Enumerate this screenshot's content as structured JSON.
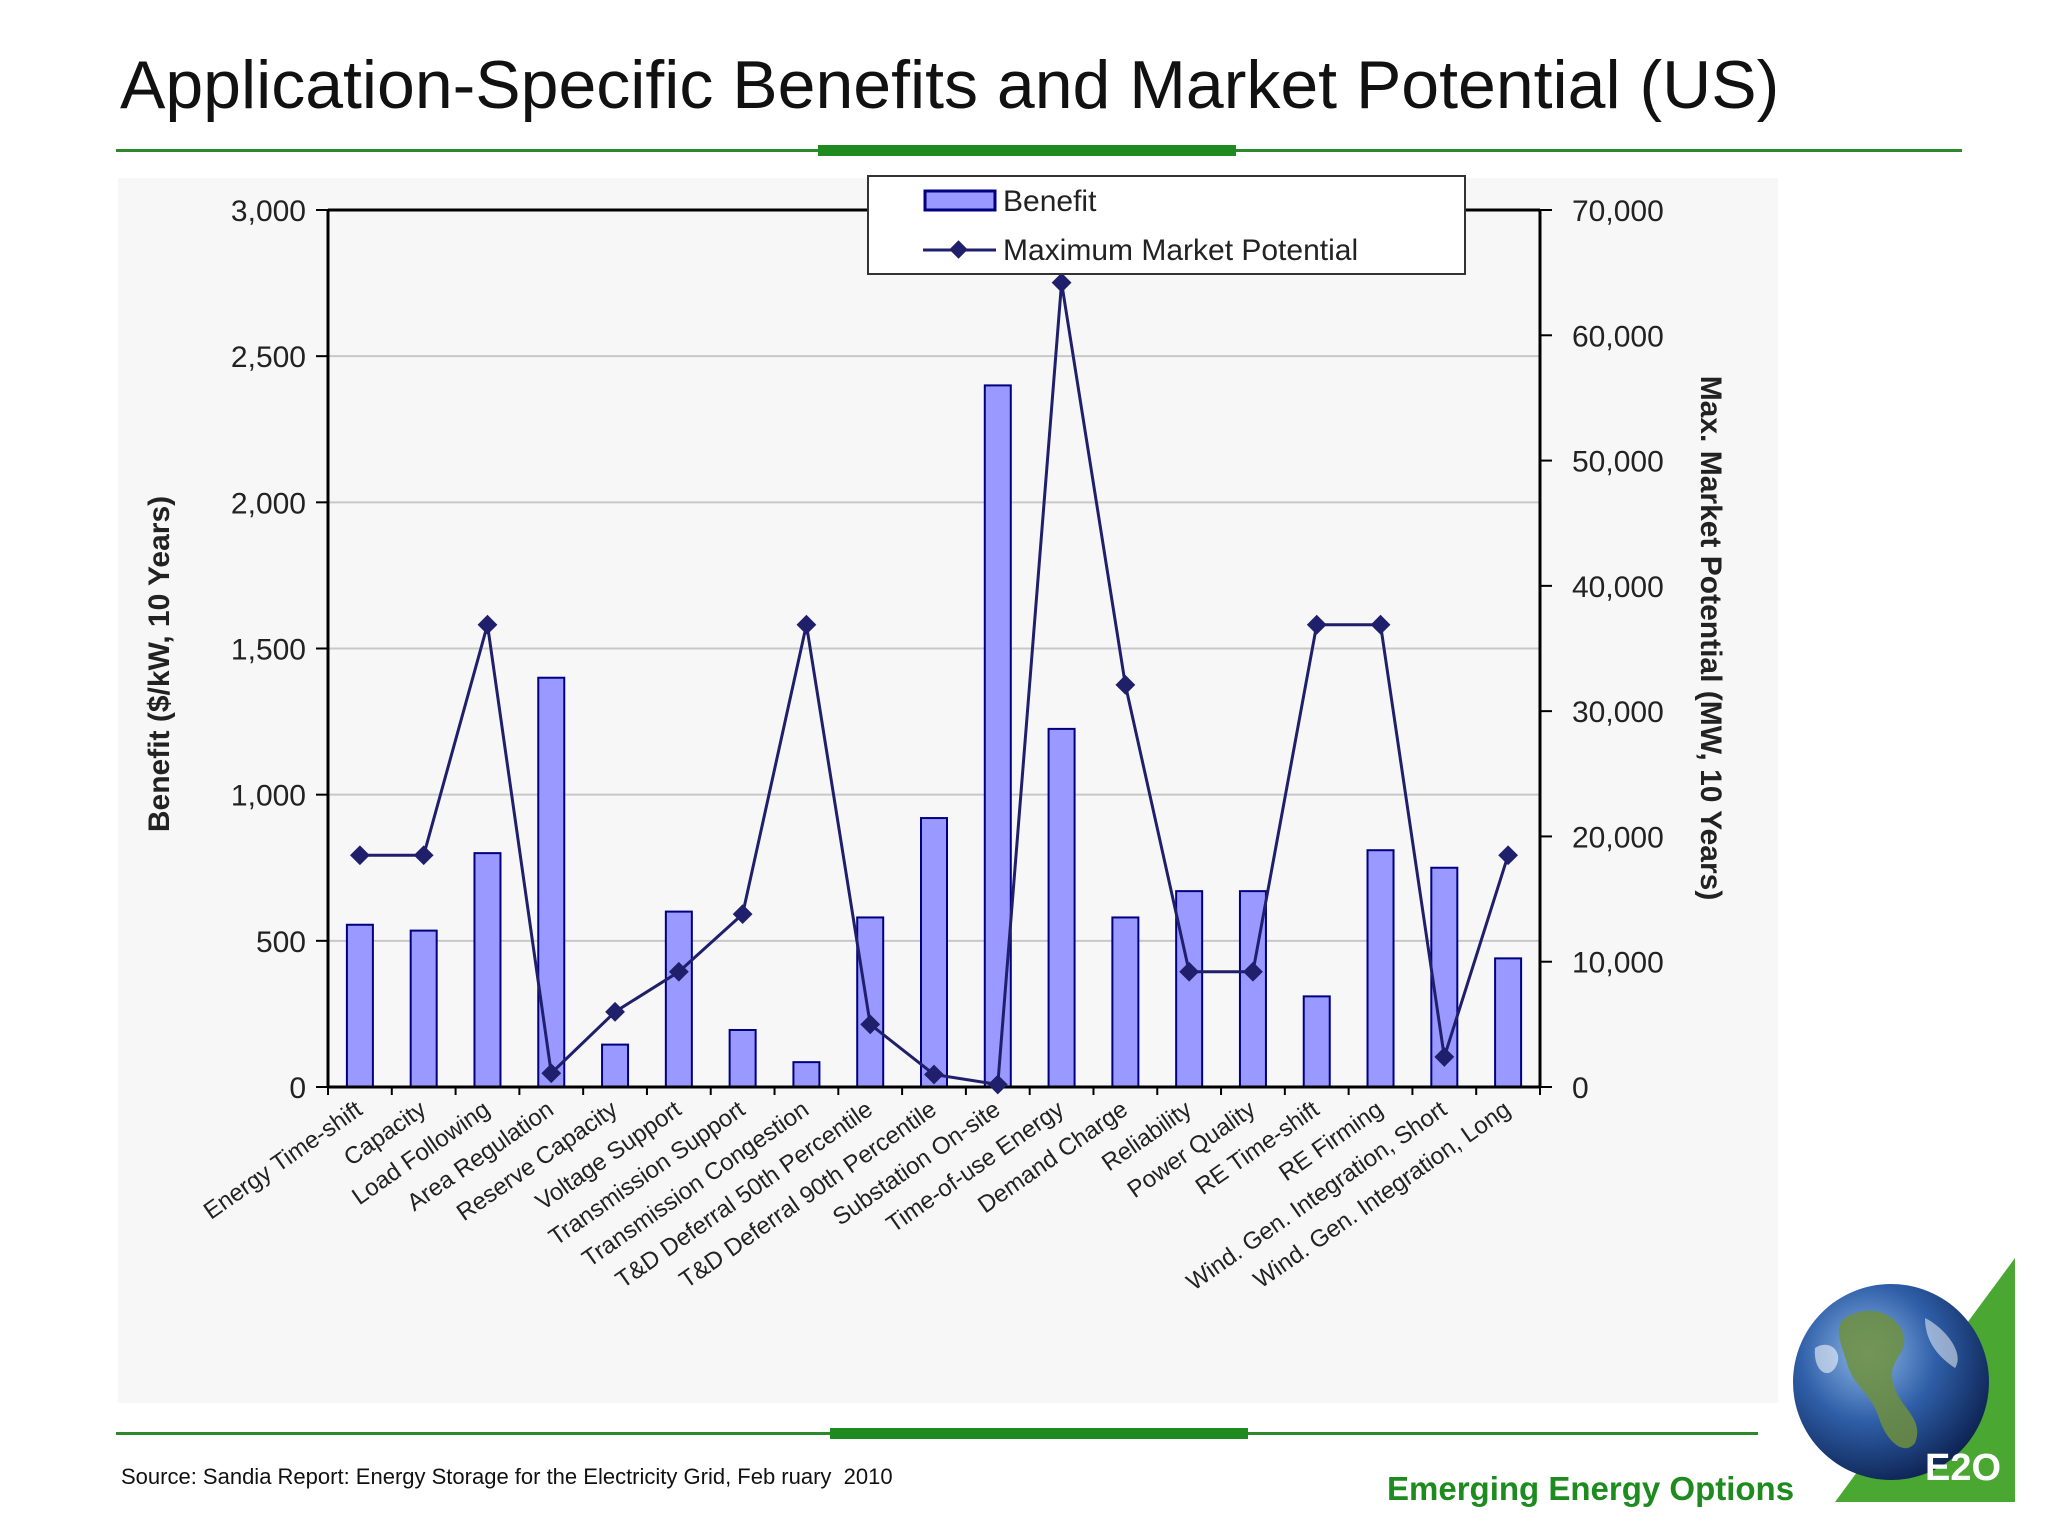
{
  "slide": {
    "title": "Application-Specific Benefits and Market Potential (US)",
    "source": "Source: Sandia Report: Energy Storage for the Electricity Grid, Feb ruary  2010",
    "brand": "Emerging Energy Options",
    "logo_text": "E2O"
  },
  "colors": {
    "bar_fill": "#9999ff",
    "bar_stroke": "#000080",
    "line": "#1f1f6b",
    "accent_green": "#1e8b1e"
  },
  "chart_data": {
    "type": "bar",
    "combo": "bar + line (dual axis)",
    "categories": [
      "Energy Time-shift",
      "Capacity",
      "Load Following",
      "Area Regulation",
      "Reserve Capacity",
      "Voltage Support",
      "Transmission Support",
      "Transmission Congestion",
      "T&D Deferral 50th Percentile",
      "T&D Deferral 90th Percentile",
      "Substation On-site",
      "Time-of-use Energy",
      "Demand Charge",
      "Reliability",
      "Power Quality",
      "RE Time-shift",
      "RE Firming",
      "Wind. Gen. Integration, Short",
      "Wind. Gen. Integration, Long"
    ],
    "series": [
      {
        "name": "Benefit",
        "type": "bar",
        "axis": "left",
        "values": [
          555,
          535,
          800,
          1400,
          145,
          600,
          195,
          85,
          580,
          920,
          2400,
          1225,
          580,
          670,
          670,
          310,
          810,
          750,
          440
        ]
      },
      {
        "name": "Maximum Market Potential",
        "type": "line",
        "axis": "right",
        "values": [
          18500,
          18500,
          36900,
          1100,
          6000,
          9200,
          13800,
          36900,
          5000,
          1000,
          200,
          64200,
          32100,
          9200,
          9200,
          36900,
          36900,
          2400,
          18500
        ]
      }
    ],
    "y_left": {
      "label": "Benefit ($/kW, 10 Years)",
      "range": [
        0,
        3000
      ],
      "ticks": [
        0,
        500,
        1000,
        1500,
        2000,
        2500,
        3000
      ],
      "tick_labels": [
        "0",
        "500",
        "1,000",
        "1,500",
        "2,000",
        "2,500",
        "3,000"
      ]
    },
    "y_right": {
      "label": "Max. Market Potential (MW, 10 Years)",
      "range": [
        0,
        70000
      ],
      "ticks": [
        0,
        10000,
        20000,
        30000,
        40000,
        50000,
        60000,
        70000
      ],
      "tick_labels": [
        "0",
        "10,000",
        "20,000",
        "30,000",
        "40,000",
        "50,000",
        "60,000",
        "70,000"
      ]
    },
    "grid": "horizontal",
    "legend": "top-right"
  }
}
